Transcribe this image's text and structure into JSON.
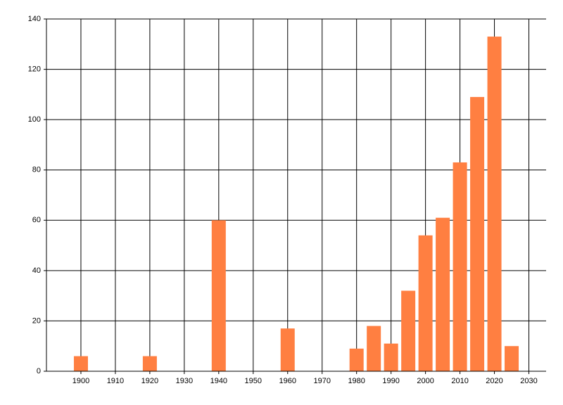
{
  "chart_data": {
    "type": "bar",
    "x": [
      1900,
      1920,
      1940,
      1960,
      1980,
      1985,
      1990,
      1995,
      2000,
      2005,
      2010,
      2015,
      2020,
      2025
    ],
    "values": [
      6,
      6,
      60,
      17,
      9,
      18,
      11,
      32,
      54,
      61,
      83,
      109,
      133,
      10
    ],
    "color": "#ff7f41",
    "xlim": [
      1890,
      2035
    ],
    "xticks": [
      1900,
      1910,
      1920,
      1930,
      1940,
      1950,
      1960,
      1970,
      1980,
      1990,
      2000,
      2010,
      2020,
      2030
    ],
    "ylim": [
      0,
      140
    ],
    "yticks": [
      0,
      20,
      40,
      60,
      80,
      100,
      120,
      140
    ],
    "grid": true
  }
}
